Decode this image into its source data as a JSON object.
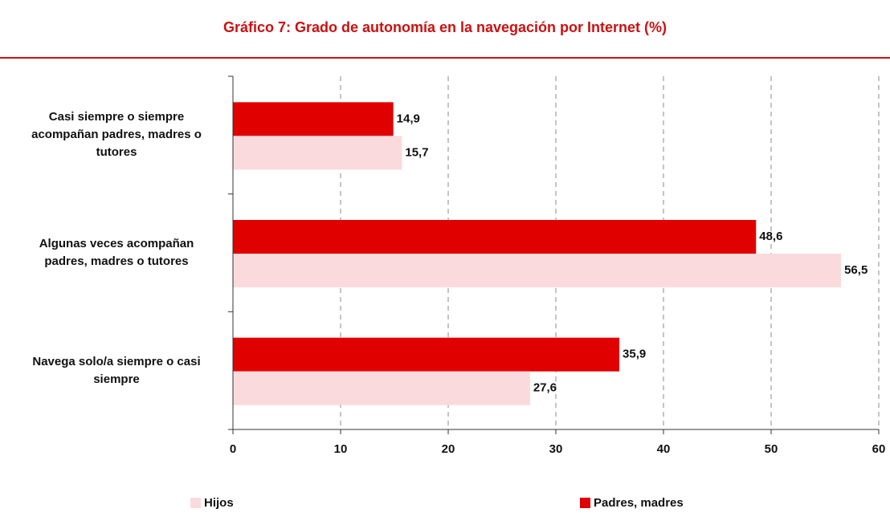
{
  "chart_data": {
    "type": "hbar",
    "title": "Gráfico 7: Grado de autonomía en la navegación por Internet (%)",
    "categories": [
      "Casi siempre o siempre acompañan padres, madres o tutores",
      "Algunas veces acompañan padres, madres o tutores",
      "Navega solo/a siempre o casi siempre"
    ],
    "series": [
      {
        "name": "Hijos",
        "color": "#fadadd",
        "values": [
          15.7,
          56.5,
          27.6
        ],
        "value_labels": [
          "15,7",
          "56,5",
          "27,6"
        ]
      },
      {
        "name": "Padres, madres",
        "color": "#e00000",
        "values": [
          14.9,
          48.6,
          35.9
        ],
        "value_labels": [
          "14,9",
          "48,6",
          "35,9"
        ]
      }
    ],
    "xlim": [
      0,
      60
    ],
    "xticks": [
      0,
      10,
      20,
      30,
      40,
      50,
      60
    ],
    "grid": true
  }
}
